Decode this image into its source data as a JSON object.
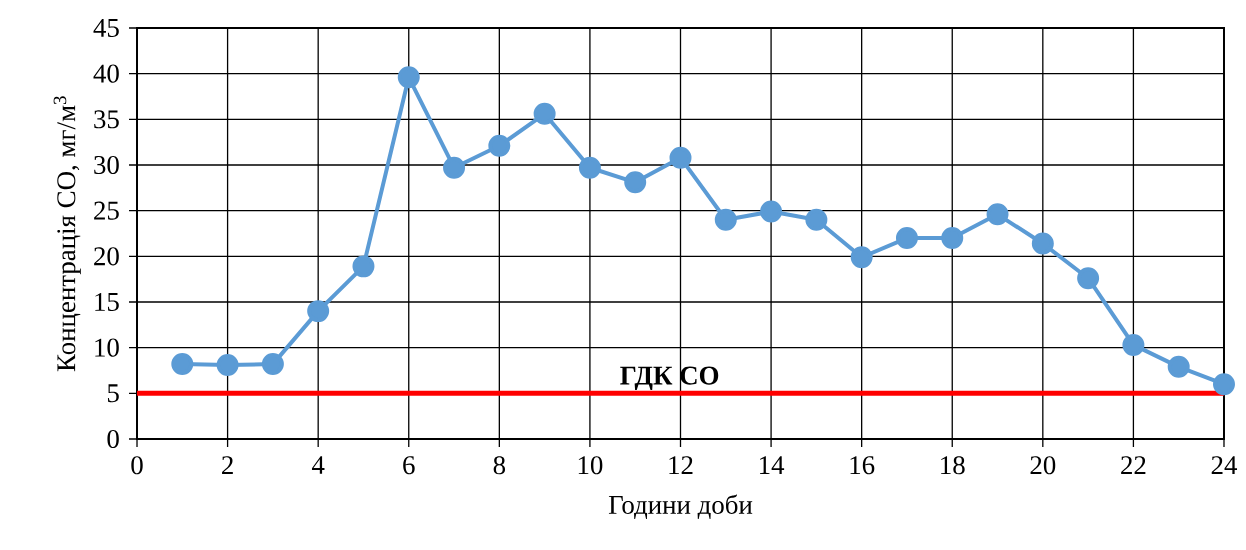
{
  "chart_data": {
    "type": "line",
    "xlabel": "Години доби",
    "ylabel": "Концентрація СО, мг/м$^{3}$",
    "x": [
      1,
      2,
      3,
      4,
      5,
      6,
      7,
      8,
      9,
      10,
      11,
      12,
      13,
      14,
      15,
      16,
      17,
      18,
      19,
      20,
      21,
      22,
      23,
      24
    ],
    "series": [
      {
        "color": "#5b9bd5",
        "values": [
          8.2,
          8.1,
          8.2,
          14.0,
          18.9,
          39.6,
          29.7,
          32.1,
          35.6,
          29.7,
          28.1,
          30.8,
          24.0,
          24.9,
          24.0,
          19.9,
          22.0,
          22.0,
          24.6,
          21.4,
          17.6,
          10.3,
          7.9,
          6.0
        ]
      }
    ],
    "xlim": [
      0,
      24
    ],
    "xticks": [
      0,
      2,
      4,
      6,
      8,
      10,
      12,
      14,
      16,
      18,
      20,
      22,
      24
    ],
    "ylim": [
      0,
      45
    ],
    "yticks": [
      0,
      5,
      10,
      15,
      20,
      25,
      30,
      35,
      40,
      45
    ],
    "grid": true,
    "marker": "circle",
    "line_style": "solid",
    "ref_lines": [
      {
        "axis": "y",
        "value": 5,
        "label": "ГДК СО",
        "color": "#ff0000"
      }
    ]
  }
}
